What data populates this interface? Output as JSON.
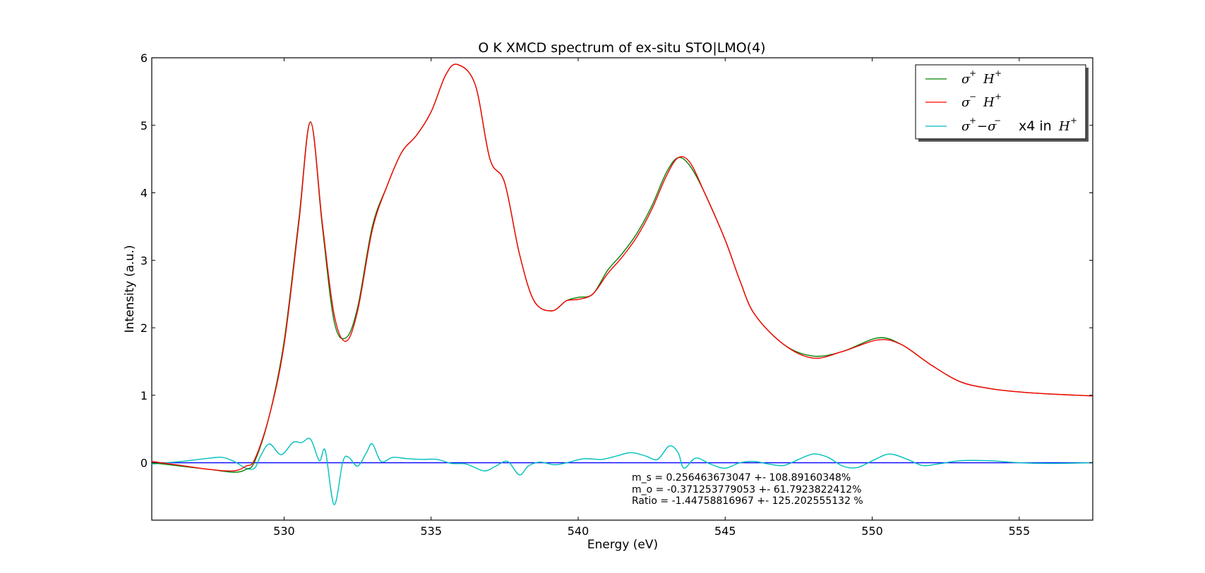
{
  "chart_data": {
    "type": "line",
    "title": "O K XMCD spectrum of ex-situ STO|LMO(4)",
    "xlabel": "Energy (eV)",
    "ylabel": "Intensity (a.u.)",
    "xlim": [
      525.5,
      557.5
    ],
    "ylim": [
      -0.85,
      6.0
    ],
    "x_ticks": [
      530,
      535,
      540,
      545,
      550,
      555
    ],
    "y_ticks": [
      0,
      1,
      2,
      3,
      4,
      5,
      6
    ],
    "grid": false,
    "legend_position": "top-right",
    "series": [
      {
        "name": "σ+ H+",
        "color": "#008000",
        "x": [
          525.5,
          526.5,
          527.5,
          528.3,
          528.7,
          529.0,
          529.5,
          530.0,
          530.5,
          530.9,
          531.3,
          531.7,
          532.1,
          532.5,
          533.0,
          533.5,
          534.0,
          534.5,
          535.0,
          535.5,
          535.9,
          536.5,
          537.0,
          537.5,
          538.0,
          538.5,
          539.1,
          539.6,
          540.0,
          540.5,
          541.0,
          541.5,
          542.0,
          542.5,
          543.0,
          543.4,
          543.8,
          544.3,
          545.0,
          545.5,
          546.0,
          547.0,
          548.0,
          549.0,
          550.2,
          551.0,
          552.0,
          553.0,
          554.0,
          555.0,
          556.0,
          557.5
        ],
        "values": [
          0.0,
          -0.05,
          -0.1,
          -0.14,
          -0.1,
          0.02,
          0.7,
          1.8,
          3.6,
          5.05,
          3.5,
          2.1,
          1.85,
          2.3,
          3.5,
          4.1,
          4.6,
          4.85,
          5.2,
          5.75,
          5.9,
          5.6,
          4.5,
          4.15,
          3.1,
          2.4,
          2.25,
          2.4,
          2.45,
          2.5,
          2.85,
          3.1,
          3.4,
          3.8,
          4.3,
          4.52,
          4.4,
          4.0,
          3.3,
          2.7,
          2.2,
          1.75,
          1.58,
          1.65,
          1.85,
          1.75,
          1.45,
          1.2,
          1.1,
          1.05,
          1.02,
          0.99
        ]
      },
      {
        "name": "σ− H+",
        "color": "#ff0000",
        "x": [
          525.5,
          526.5,
          527.5,
          528.3,
          528.7,
          529.0,
          529.5,
          530.0,
          530.5,
          530.9,
          531.3,
          531.7,
          532.1,
          532.5,
          533.0,
          533.5,
          534.0,
          534.5,
          535.0,
          535.5,
          535.9,
          536.5,
          537.0,
          537.5,
          538.0,
          538.5,
          539.1,
          539.6,
          540.0,
          540.5,
          541.0,
          541.5,
          542.0,
          542.5,
          543.0,
          543.4,
          543.8,
          544.3,
          545.0,
          545.5,
          546.0,
          547.0,
          548.0,
          549.0,
          550.2,
          551.0,
          552.0,
          553.0,
          554.0,
          555.0,
          556.0,
          557.5
        ],
        "values": [
          0.02,
          -0.04,
          -0.1,
          -0.12,
          -0.05,
          0.05,
          0.7,
          1.75,
          3.55,
          5.05,
          3.55,
          2.2,
          1.8,
          2.25,
          3.45,
          4.1,
          4.6,
          4.85,
          5.2,
          5.75,
          5.9,
          5.6,
          4.5,
          4.15,
          3.1,
          2.4,
          2.25,
          2.4,
          2.42,
          2.5,
          2.8,
          3.05,
          3.35,
          3.75,
          4.25,
          4.52,
          4.45,
          4.0,
          3.3,
          2.7,
          2.2,
          1.75,
          1.55,
          1.65,
          1.82,
          1.75,
          1.45,
          1.2,
          1.1,
          1.05,
          1.02,
          0.99
        ]
      },
      {
        "name": "σ+ −σ− x4 in H+",
        "color": "#00bfbf",
        "x": [
          525.5,
          526.5,
          527.5,
          527.9,
          528.3,
          528.7,
          529.0,
          529.2,
          529.5,
          529.9,
          530.3,
          530.6,
          530.9,
          531.2,
          531.4,
          531.7,
          532.0,
          532.2,
          532.5,
          532.8,
          533.0,
          533.3,
          533.7,
          534.2,
          534.7,
          535.2,
          535.7,
          536.2,
          536.8,
          537.2,
          537.6,
          538.0,
          538.3,
          538.7,
          539.2,
          539.7,
          540.2,
          540.8,
          541.3,
          541.8,
          542.3,
          542.7,
          543.1,
          543.4,
          543.6,
          544.0,
          544.5,
          545.0,
          545.5,
          546.0,
          546.5,
          547.0,
          547.5,
          548.0,
          548.5,
          549.0,
          549.5,
          550.1,
          550.6,
          551.2,
          551.7,
          552.2,
          553.0,
          554.0,
          555.0,
          556.0,
          557.5
        ],
        "values": [
          -0.02,
          0.02,
          0.07,
          0.08,
          0.02,
          -0.08,
          -0.08,
          0.1,
          0.28,
          0.12,
          0.3,
          0.3,
          0.35,
          0.03,
          0.18,
          -0.62,
          0.02,
          0.08,
          -0.05,
          0.15,
          0.28,
          0.02,
          0.08,
          0.06,
          0.05,
          0.05,
          -0.01,
          -0.02,
          -0.12,
          -0.05,
          0.02,
          -0.18,
          -0.05,
          0.01,
          -0.03,
          0.01,
          0.06,
          0.05,
          0.1,
          0.15,
          0.1,
          0.05,
          0.25,
          0.15,
          -0.08,
          0.07,
          -0.02,
          -0.08,
          0.0,
          0.02,
          -0.02,
          -0.04,
          0.05,
          0.13,
          0.08,
          -0.05,
          -0.07,
          0.05,
          0.13,
          0.05,
          -0.04,
          -0.02,
          0.03,
          0.03,
          0.0,
          -0.01,
          0.0
        ]
      },
      {
        "name": "",
        "color": "#0000ff",
        "x": [
          525.5,
          557.5
        ],
        "values": [
          0,
          0
        ]
      }
    ],
    "legend": [
      {
        "prefix": "",
        "series_index": 0
      },
      {
        "prefix": "",
        "series_index": 1
      },
      {
        "prefix": "x4 in",
        "series_index": 2
      }
    ],
    "annotations": [
      "m_s = 0.256463673047 +- 108.89160348%",
      "m_o = -0.371253779053 +- 61.7923822412%",
      "Ratio = -1.44758816967 +- 125.202555132 %"
    ]
  }
}
